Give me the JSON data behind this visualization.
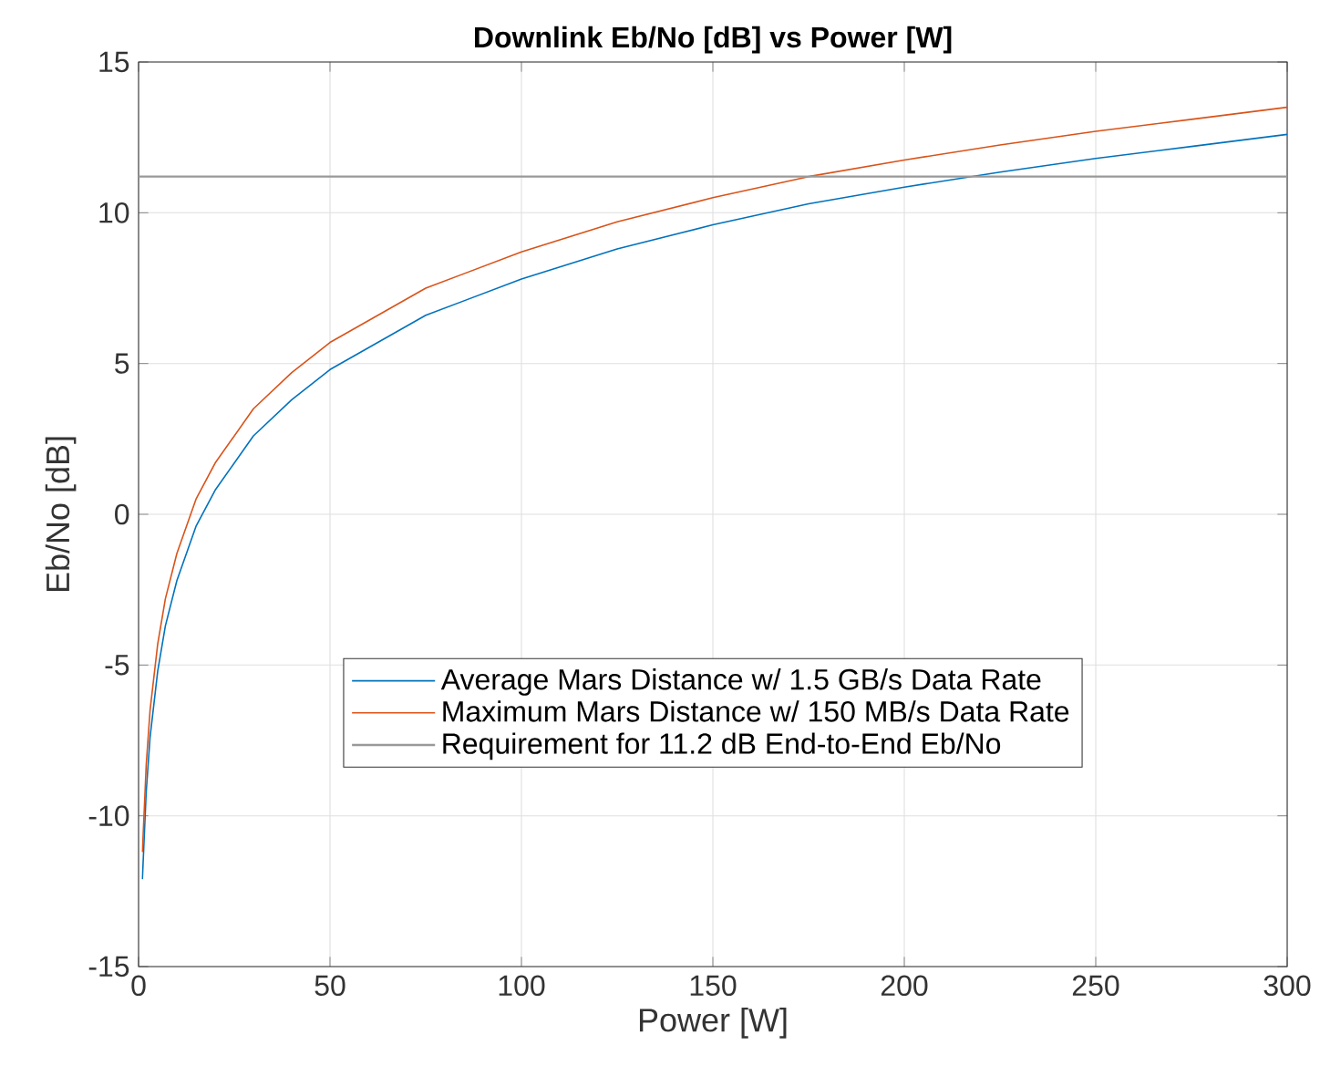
{
  "chart_data": {
    "type": "line",
    "title": "Downlink Eb/No [dB] vs Power [W]",
    "xlabel": "Power [W]",
    "ylabel": "Eb/No [dB]",
    "xlim": [
      0,
      300
    ],
    "ylim": [
      -15,
      15
    ],
    "xticks": [
      0,
      50,
      100,
      150,
      200,
      250,
      300
    ],
    "yticks": [
      -15,
      -10,
      -5,
      0,
      5,
      10,
      15
    ],
    "grid": true,
    "legend": "bottom",
    "line_style": "solid",
    "marker": "none",
    "series": [
      {
        "name": "Average Mars Distance w/ 1.5 GB/s Data Rate",
        "color": "#0072bd",
        "x": [
          1,
          2,
          3,
          5,
          7,
          10,
          15,
          20,
          30,
          40,
          50,
          75,
          100,
          125,
          150,
          175,
          200,
          225,
          250,
          275,
          300
        ],
        "values": [
          -12.1,
          -9.2,
          -7.4,
          -5.2,
          -3.7,
          -2.2,
          -0.4,
          0.8,
          2.6,
          3.8,
          4.8,
          6.6,
          7.8,
          8.8,
          9.6,
          10.3,
          10.85,
          11.35,
          11.8,
          12.2,
          12.6
        ]
      },
      {
        "name": "Maximum Mars Distance w/ 150 MB/s Data Rate",
        "color": "#d95319",
        "x": [
          1,
          2,
          3,
          5,
          7,
          10,
          15,
          20,
          30,
          40,
          50,
          75,
          100,
          125,
          150,
          175,
          200,
          225,
          250,
          275,
          300
        ],
        "values": [
          -11.2,
          -8.3,
          -6.5,
          -4.3,
          -2.8,
          -1.3,
          0.5,
          1.7,
          3.5,
          4.7,
          5.7,
          7.5,
          8.7,
          9.7,
          10.5,
          11.2,
          11.75,
          12.25,
          12.7,
          13.1,
          13.5
        ]
      }
    ],
    "ref_lines": [
      {
        "axis": "y",
        "value": 11.2,
        "label": "Requirement for 11.2 dB End-to-End Eb/No",
        "color": "#999999"
      }
    ]
  }
}
